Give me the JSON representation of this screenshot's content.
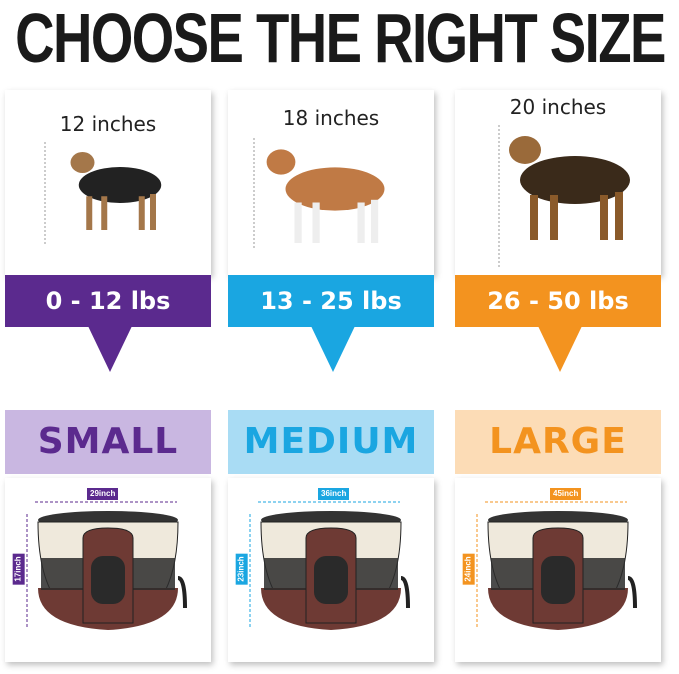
{
  "title": "CHOOSE THE RIGHT SIZE",
  "sizes": [
    {
      "dog_height": "12 inches",
      "weight": "0 - 12 lbs",
      "size": "SMALL",
      "width": "29inch",
      "height": "17inch",
      "color": "#5b2a8e",
      "light": "#c9b7e1"
    },
    {
      "dog_height": "18 inches",
      "weight": "13 - 25 lbs",
      "size": "MEDIUM",
      "width": "36inch",
      "height": "23inch",
      "color": "#1aa6e1",
      "light": "#a9dcf4"
    },
    {
      "dog_height": "20 inches",
      "weight": "26 - 50 lbs",
      "size": "LARGE",
      "width": "45inch",
      "height": "24inch",
      "color": "#f3931f",
      "light": "#fcdcb6"
    }
  ]
}
